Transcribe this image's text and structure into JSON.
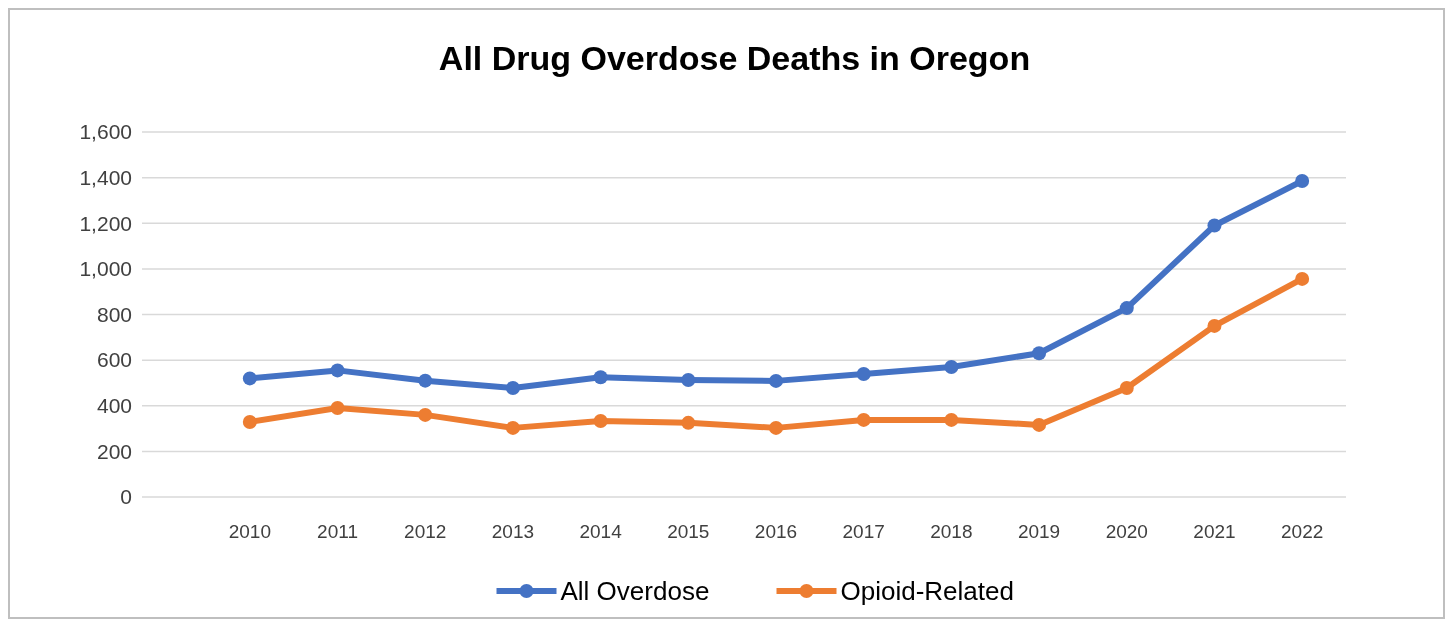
{
  "chart_data": {
    "type": "line",
    "title": "All Drug Overdose Deaths in Oregon",
    "categories": [
      "2010",
      "2011",
      "2012",
      "2013",
      "2014",
      "2015",
      "2016",
      "2017",
      "2018",
      "2019",
      "2020",
      "2021",
      "2022"
    ],
    "series": [
      {
        "name": "All Overdose",
        "color": "#4472c4",
        "values": [
          520,
          555,
          510,
          478,
          525,
          513,
          509,
          539,
          570,
          630,
          828,
          1190,
          1385
        ]
      },
      {
        "name": "Opioid-Related",
        "color": "#ed7d31",
        "values": [
          329,
          390,
          360,
          303,
          333,
          325,
          303,
          338,
          338,
          316,
          478,
          750,
          956
        ]
      }
    ],
    "ylim": [
      0,
      1600
    ],
    "yticks": [
      {
        "value": 0,
        "label": "0"
      },
      {
        "value": 200,
        "label": "200"
      },
      {
        "value": 400,
        "label": "400"
      },
      {
        "value": 600,
        "label": "600"
      },
      {
        "value": 800,
        "label": "800"
      },
      {
        "value": 1000,
        "label": "1,000"
      },
      {
        "value": 1200,
        "label": "1,200"
      },
      {
        "value": 1400,
        "label": "1,400"
      },
      {
        "value": 1600,
        "label": "1,600"
      }
    ],
    "grid": "y",
    "legend": "bottom",
    "marker": "circle",
    "line_style": "solid"
  }
}
